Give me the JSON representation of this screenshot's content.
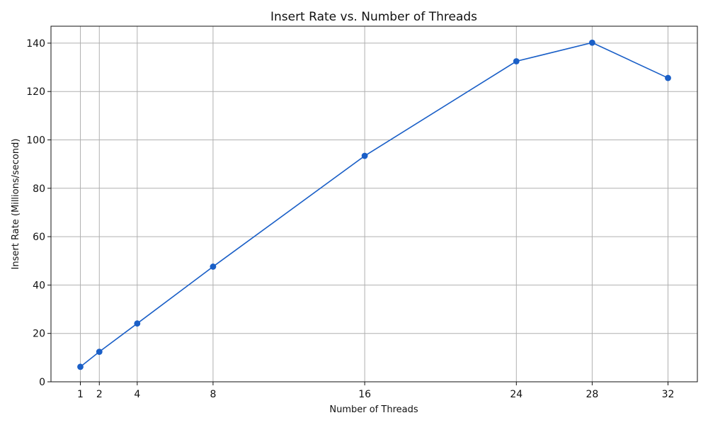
{
  "chart_data": {
    "type": "line",
    "title": "Insert Rate vs. Number of Threads",
    "xlabel": "Number of Threads",
    "ylabel": "Insert Rate (Millions/second)",
    "x": [
      1,
      2,
      4,
      8,
      16,
      24,
      28,
      32
    ],
    "xticks": [
      1,
      2,
      4,
      8,
      16,
      24,
      28,
      32
    ],
    "xlim": [
      -0.55,
      33.55
    ],
    "ylim": [
      0,
      147
    ],
    "yticks": [
      0,
      20,
      40,
      60,
      80,
      100,
      120,
      140
    ],
    "grid": true,
    "series": [
      {
        "values": [
          6.2,
          12.4,
          24.1,
          47.6,
          93.4,
          132.5,
          140.2,
          125.6
        ],
        "color": "#1a5fc7",
        "marker": "circle"
      }
    ]
  }
}
